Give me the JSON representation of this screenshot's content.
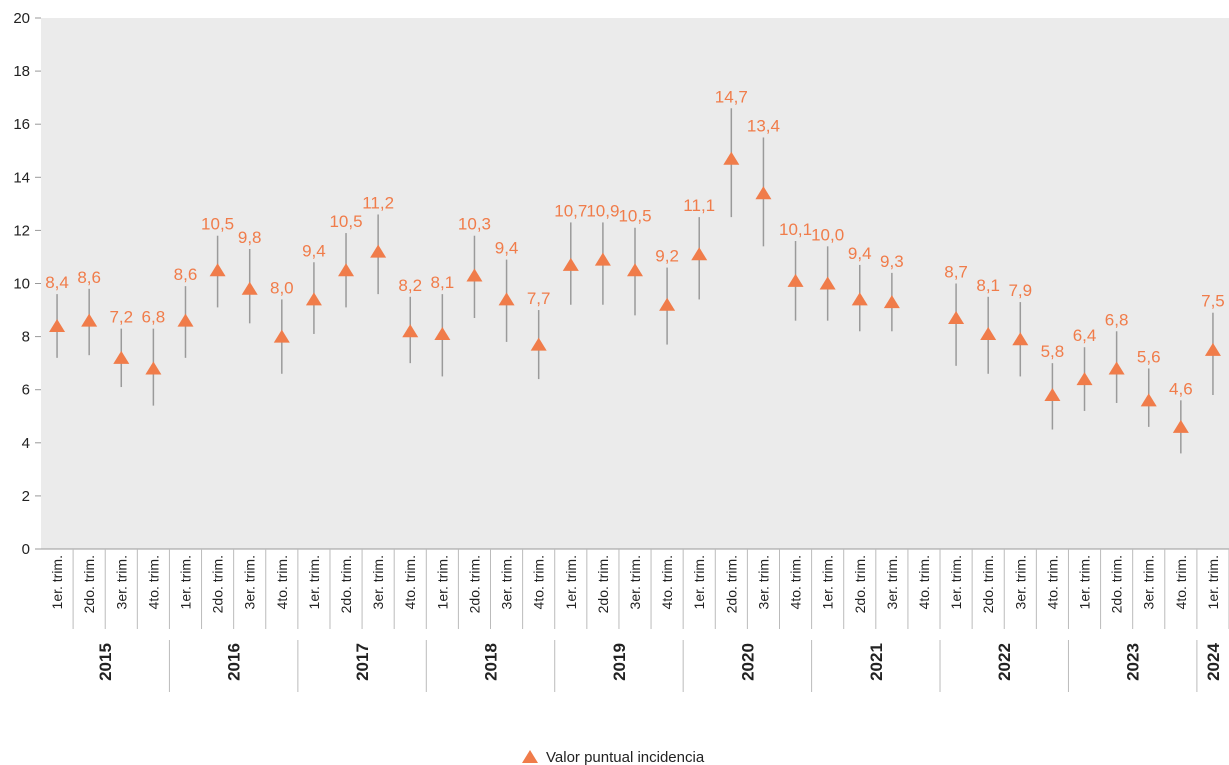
{
  "chart_data": {
    "type": "errorbar",
    "categories": [
      "1er. trim.",
      "2do. trim.",
      "3er. trim.",
      "4to. trim.",
      "1er. trim.",
      "2do. trim.",
      "3er. trim.",
      "4to. trim.",
      "1er. trim.",
      "2do. trim.",
      "3er. trim.",
      "4to. trim.",
      "1er. trim.",
      "2do. trim.",
      "3er. trim.",
      "4to. trim.",
      "1er. trim.",
      "2do. trim.",
      "3er. trim.",
      "4to. trim.",
      "1er. trim.",
      "2do. trim.",
      "3er. trim.",
      "4to. trim.",
      "1er. trim.",
      "2do. trim.",
      "3er. trim.",
      "4to. trim.",
      "1er. trim.",
      "2do. trim.",
      "3er. trim.",
      "4to. trim.",
      "1er. trim.",
      "2do. trim.",
      "3er. trim.",
      "4to. trim.",
      "1er. trim."
    ],
    "groups": [
      {
        "label": "2015",
        "span": 4
      },
      {
        "label": "2016",
        "span": 4
      },
      {
        "label": "2017",
        "span": 4
      },
      {
        "label": "2018",
        "span": 4
      },
      {
        "label": "2019",
        "span": 4
      },
      {
        "label": "2020",
        "span": 4
      },
      {
        "label": "2021",
        "span": 4
      },
      {
        "label": "2022",
        "span": 4
      },
      {
        "label": "2023",
        "span": 4
      },
      {
        "label": "2024",
        "span": 1
      }
    ],
    "series": [
      {
        "name": "Valor puntual incidencia",
        "color": "#f07c4a",
        "errorbar_color": "#9a9a9a",
        "values": [
          8.4,
          8.6,
          7.2,
          6.8,
          8.6,
          10.5,
          9.8,
          8.0,
          9.4,
          10.5,
          11.2,
          8.2,
          8.1,
          10.3,
          9.4,
          7.7,
          10.7,
          10.9,
          10.5,
          9.2,
          11.1,
          14.7,
          13.4,
          10.1,
          10.0,
          9.4,
          9.3,
          null,
          8.7,
          8.1,
          7.9,
          5.8,
          6.4,
          6.8,
          5.6,
          4.6,
          7.5
        ],
        "value_labels": [
          "8,4",
          "8,6",
          "7,2",
          "6,8",
          "8,6",
          "10,5",
          "9,8",
          "8,0",
          "9,4",
          "10,5",
          "11,2",
          "8,2",
          "8,1",
          "10,3",
          "9,4",
          "7,7",
          "10,7",
          "10,9",
          "10,5",
          "9,2",
          "11,1",
          "14,7",
          "13,4",
          "10,1",
          "10,0",
          "9,4",
          "9,3",
          null,
          "8,7",
          "8,1",
          "7,9",
          "5,8",
          "6,4",
          "6,8",
          "5,6",
          "4,6",
          "7,5"
        ],
        "lower": [
          7.2,
          7.3,
          6.1,
          5.4,
          7.2,
          9.1,
          8.5,
          6.6,
          8.1,
          9.1,
          9.6,
          7.0,
          6.5,
          8.7,
          7.8,
          6.4,
          9.2,
          9.2,
          8.8,
          7.7,
          9.4,
          12.5,
          11.4,
          8.6,
          8.6,
          8.2,
          8.2,
          null,
          6.9,
          6.6,
          6.5,
          4.5,
          5.2,
          5.5,
          4.6,
          3.6,
          5.8
        ],
        "upper": [
          9.6,
          9.8,
          8.3,
          8.3,
          9.9,
          11.8,
          11.3,
          9.4,
          10.8,
          11.9,
          12.6,
          9.5,
          9.6,
          11.8,
          10.9,
          9.0,
          12.3,
          12.3,
          12.1,
          10.6,
          12.5,
          16.6,
          15.5,
          11.6,
          11.4,
          10.7,
          10.4,
          null,
          10.0,
          9.5,
          9.3,
          7.0,
          7.6,
          8.2,
          6.8,
          5.6,
          8.9
        ]
      }
    ],
    "ylim": [
      0,
      20
    ],
    "yticks": [
      0,
      2,
      4,
      6,
      8,
      10,
      12,
      14,
      16,
      18,
      20
    ],
    "plot_background": "#ebebeb",
    "legend": "bottom"
  }
}
